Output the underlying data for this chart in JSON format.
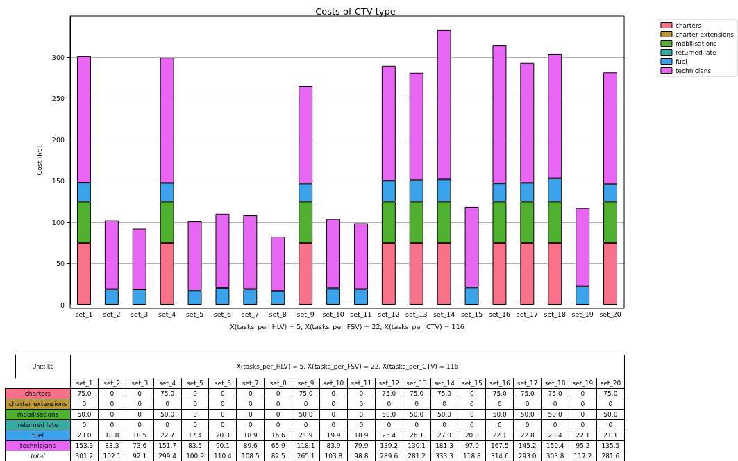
{
  "chart_data": {
    "type": "bar",
    "stacked": true,
    "title": "Costs of CTV type",
    "xlabel": "X(tasks_per_HLV) = 5, X(tasks_per_FSV) = 22, X(tasks_per_CTV) = 116",
    "ylabel": "Cost [k€]",
    "categories": [
      "set_1",
      "set_2",
      "set_3",
      "set_4",
      "set_5",
      "set_6",
      "set_7",
      "set_8",
      "set_9",
      "set_10",
      "set_11",
      "set_12",
      "set_13",
      "set_14",
      "set_15",
      "set_16",
      "set_17",
      "set_18",
      "set_19",
      "set_20"
    ],
    "series": [
      {
        "name": "charters",
        "color": "#f77189",
        "values": [
          75.0,
          0,
          0,
          75.0,
          0,
          0,
          0,
          0,
          75.0,
          0,
          0,
          75.0,
          75.0,
          75.0,
          0,
          75.0,
          75.0,
          75.0,
          0,
          75.0
        ],
        "value_labels": [
          "75.0",
          "0",
          "0",
          "75.0",
          "0",
          "0",
          "0",
          "0",
          "75.0",
          "0",
          "0",
          "75.0",
          "75.0",
          "75.0",
          "0",
          "75.0",
          "75.0",
          "75.0",
          "0",
          "75.0"
        ]
      },
      {
        "name": "charter extensions",
        "color": "#bb9832",
        "values": [
          0,
          0,
          0,
          0,
          0,
          0,
          0,
          0,
          0,
          0,
          0,
          0,
          0,
          0,
          0,
          0,
          0,
          0,
          0,
          0
        ],
        "value_labels": [
          "0",
          "0",
          "0",
          "0",
          "0",
          "0",
          "0",
          "0",
          "0",
          "0",
          "0",
          "0",
          "0",
          "0",
          "0",
          "0",
          "0",
          "0",
          "0",
          "0"
        ]
      },
      {
        "name": "mobilisations",
        "color": "#50b131",
        "values": [
          50.0,
          0,
          0,
          50.0,
          0,
          0,
          0,
          0,
          50.0,
          0,
          0,
          50.0,
          50.0,
          50.0,
          0,
          50.0,
          50.0,
          50.0,
          0,
          50.0
        ],
        "value_labels": [
          "50.0",
          "0",
          "0",
          "50.0",
          "0",
          "0",
          "0",
          "0",
          "50.0",
          "0",
          "0",
          "50.0",
          "50.0",
          "50.0",
          "0",
          "50.0",
          "50.0",
          "50.0",
          "0",
          "50.0"
        ]
      },
      {
        "name": "returned late",
        "color": "#36ada4",
        "values": [
          0,
          0,
          0,
          0,
          0,
          0,
          0,
          0,
          0,
          0,
          0,
          0,
          0,
          0,
          0,
          0,
          0,
          0,
          0,
          0
        ],
        "value_labels": [
          "0",
          "0",
          "0",
          "0",
          "0",
          "0",
          "0",
          "0",
          "0",
          "0",
          "0",
          "0",
          "0",
          "0",
          "0",
          "0",
          "0",
          "0",
          "0",
          "0"
        ]
      },
      {
        "name": "fuel",
        "color": "#3ba3ec",
        "values": [
          23.0,
          18.8,
          18.5,
          22.7,
          17.4,
          20.3,
          18.9,
          16.6,
          21.9,
          19.9,
          18.9,
          25.4,
          26.1,
          27.0,
          20.8,
          22.1,
          22.8,
          28.4,
          22.1,
          21.1
        ],
        "value_labels": [
          "23.0",
          "18.8",
          "18.5",
          "22.7",
          "17.4",
          "20.3",
          "18.9",
          "16.6",
          "21.9",
          "19.9",
          "18.9",
          "25.4",
          "26.1",
          "27.0",
          "20.8",
          "22.1",
          "22.8",
          "28.4",
          "22.1",
          "21.1"
        ]
      },
      {
        "name": "technicians",
        "color": "#e866f4",
        "values": [
          153.3,
          83.3,
          73.6,
          151.7,
          83.5,
          90.1,
          89.6,
          65.9,
          118.1,
          83.9,
          79.9,
          139.2,
          130.1,
          181.3,
          97.9,
          167.5,
          145.2,
          150.4,
          95.2,
          135.5
        ],
        "value_labels": [
          "153.3",
          "83.3",
          "73.6",
          "151.7",
          "83.5",
          "90.1",
          "89.6",
          "65.9",
          "118.1",
          "83.9",
          "79.9",
          "139.2",
          "130.1",
          "181.3",
          "97.9",
          "167.5",
          "145.2",
          "150.4",
          "95.2",
          "135.5"
        ]
      }
    ],
    "annotations": [
      "Unit: k€",
      "total",
      "301.2",
      "102.1",
      "92.1",
      "299.4",
      "100.9",
      "110.4",
      "108.5",
      "82.5",
      "265.1",
      "103.8",
      "98.8",
      "289.6",
      "281.2",
      "333.3",
      "118.8",
      "314.6",
      "293.0",
      "303.8",
      "117.2",
      "281.6"
    ],
    "ylim": [
      0,
      350
    ],
    "yticks": [
      0,
      50,
      100,
      150,
      200,
      250,
      300
    ],
    "grid": "y",
    "legend": "top right"
  }
}
